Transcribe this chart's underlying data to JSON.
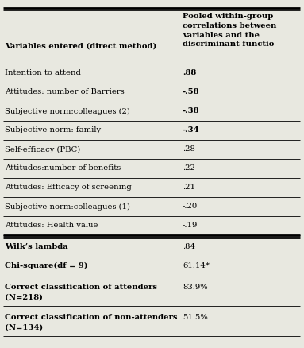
{
  "col1_header": "Variables entered (direct method)",
  "col2_header": "Pooled within-group\ncorrelations between\nvariables and the\ndiscriminant functio",
  "rows": [
    {
      "var": "Intention to attend",
      "val": ".88",
      "bold_val": true
    },
    {
      "var": "Attitudes: number of Barriers",
      "val": "-.58",
      "bold_val": true
    },
    {
      "var": "Subjective norm:colleagues (2)",
      "val": "-.38",
      "bold_val": true
    },
    {
      "var": "Subjective norm: family",
      "val": "-.34",
      "bold_val": true
    },
    {
      "var": "Self-efficacy (PBC)",
      "val": ".28",
      "bold_val": false
    },
    {
      "var": "Attitudes:number of benefits",
      "val": ".22",
      "bold_val": false
    },
    {
      "var": "Attitudes: Efficacy of screening",
      "val": ".21",
      "bold_val": false
    },
    {
      "var": "Subjective norm:colleagues (1)",
      "val": "-.20",
      "bold_val": false
    },
    {
      "var": "Attitudes: Health value",
      "val": "-.19",
      "bold_val": false
    }
  ],
  "summary_rows": [
    {
      "var": "Wilk’s lambda",
      "val": ".84",
      "var2": null
    },
    {
      "var": "Chi-square(df = 9)",
      "val": "61.14*",
      "var2": null
    },
    {
      "var": "Correct classification of attenders",
      "val": "83.9%",
      "var2": "(N=218)"
    },
    {
      "var": "Correct classification of non-attenders",
      "val": "51.5%",
      "var2": "(N=134)"
    }
  ],
  "bg_color": "#e8e8e0",
  "font_size": 7.2,
  "header_font_size": 7.2,
  "col_split": 0.595
}
